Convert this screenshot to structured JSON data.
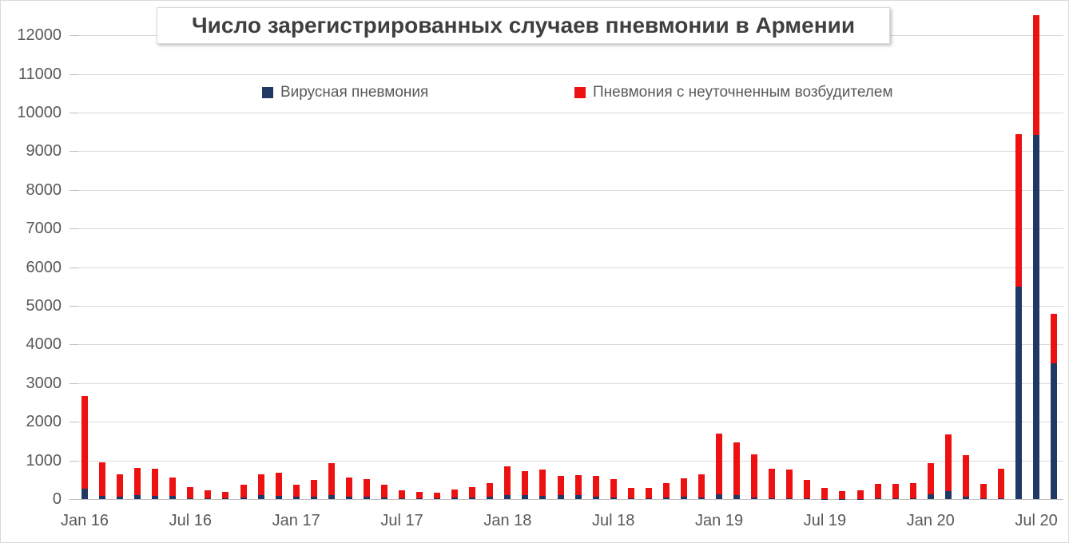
{
  "title": "Число зарегистрированных случаев пневмонии в Армении",
  "legend": [
    {
      "label": "Вирусная пневмония",
      "color": "#1f3864"
    },
    {
      "label": "Пневмония с неуточненным возбудителем",
      "color": "#ee1111"
    }
  ],
  "colors": {
    "viral_bar": "#1f3864",
    "unspecified_bar": "#ee1111",
    "axis_text": "#595959",
    "title_text": "#3f3f3f",
    "gridline": "#d9d9d9"
  },
  "chart_data": {
    "type": "bar",
    "stacked": true,
    "title": "Число зарегистрированных случаев пневмонии в Армении",
    "xlabel": "",
    "ylabel": "",
    "ylim": [
      0,
      12000
    ],
    "ytick_step": 1000,
    "grid": true,
    "legend_position": "top",
    "y_ticks": [
      0,
      1000,
      2000,
      3000,
      4000,
      5000,
      6000,
      7000,
      8000,
      9000,
      10000,
      11000,
      12000
    ],
    "x_tick_labels": [
      "Jan 16",
      "Jul 16",
      "Jan 17",
      "Jul 17",
      "Jan 18",
      "Jul 18",
      "Jan 19",
      "Jul 19",
      "Jan 20",
      "Jul 20"
    ],
    "months": [
      "2016-01",
      "2016-02",
      "2016-03",
      "2016-04",
      "2016-05",
      "2016-06",
      "2016-07",
      "2016-08",
      "2016-09",
      "2016-10",
      "2016-11",
      "2016-12",
      "2017-01",
      "2017-02",
      "2017-03",
      "2017-04",
      "2017-05",
      "2017-06",
      "2017-07",
      "2017-08",
      "2017-09",
      "2017-10",
      "2017-11",
      "2017-12",
      "2018-01",
      "2018-02",
      "2018-03",
      "2018-04",
      "2018-05",
      "2018-06",
      "2018-07",
      "2018-08",
      "2018-09",
      "2018-10",
      "2018-11",
      "2018-12",
      "2019-01",
      "2019-02",
      "2019-03",
      "2019-04",
      "2019-05",
      "2019-06",
      "2019-07",
      "2019-08",
      "2019-09",
      "2019-10",
      "2019-11",
      "2019-12",
      "2020-01",
      "2020-02",
      "2020-03",
      "2020-04",
      "2020-05",
      "2020-06",
      "2020-07",
      "2020-08"
    ],
    "series": [
      {
        "name": "Вирусная пневмония",
        "color": "#1f3864",
        "values": [
          270,
          75,
          65,
          95,
          85,
          85,
          30,
          25,
          20,
          40,
          95,
          90,
          70,
          55,
          100,
          70,
          70,
          50,
          30,
          20,
          20,
          35,
          50,
          55,
          110,
          110,
          85,
          100,
          110,
          70,
          50,
          20,
          20,
          35,
          55,
          35,
          125,
          100,
          40,
          20,
          15,
          15,
          10,
          10,
          10,
          15,
          15,
          15,
          130,
          200,
          70,
          15,
          20,
          5500,
          9415,
          3520
        ]
      },
      {
        "name": "Пневмония с неуточненным возбудителем",
        "color": "#ee1111",
        "values": [
          2400,
          870,
          575,
          705,
          690,
          475,
          270,
          210,
          170,
          330,
          555,
          585,
          300,
          435,
          830,
          490,
          440,
          320,
          200,
          160,
          140,
          210,
          265,
          365,
          730,
          620,
          685,
          495,
          520,
          535,
          475,
          265,
          265,
          370,
          490,
          615,
          1575,
          1365,
          1110,
          770,
          755,
          475,
          270,
          200,
          220,
          375,
          375,
          405,
          810,
          1475,
          1070,
          370,
          770,
          3935,
          3100,
          1270
        ]
      }
    ]
  }
}
